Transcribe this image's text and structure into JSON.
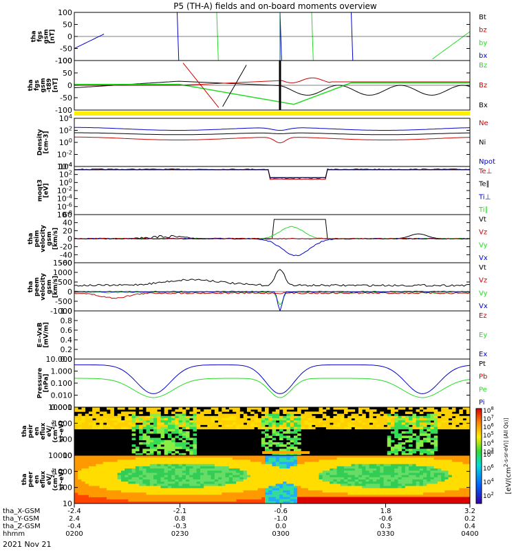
{
  "title": "P5 (TH-A) fields and on-board moments overview",
  "date_label": "2021 Nov 21",
  "colors": {
    "black": "#000000",
    "red": "#cc0000",
    "green": "#22dd22",
    "blue": "#0000cc",
    "yellow": "#ffee00",
    "white": "#ffffff"
  },
  "ephemeris": {
    "rows": [
      {
        "name": "tha_X-GSM",
        "values": [
          "-2.4",
          "-2.1",
          "-0.6",
          "1.8",
          "3.2"
        ]
      },
      {
        "name": "tha_Y-GSM",
        "values": [
          "2.4",
          "0.8",
          "-1.0",
          "-0.6",
          "0.2"
        ]
      },
      {
        "name": "tha_Z-GSM",
        "values": [
          "-0.4",
          "-0.3",
          "0.0",
          "0.3",
          "0.4"
        ]
      },
      {
        "name": "hhmm",
        "values": [
          "0200",
          "0230",
          "0300",
          "0330",
          "0400"
        ]
      }
    ]
  },
  "chart_data": [
    {
      "id": "p1",
      "type": "line",
      "ylabel": [
        "tha",
        "fgs",
        "gsm",
        "[nT]"
      ],
      "yticks": [
        "100",
        "50",
        "0",
        "-50",
        "-100"
      ],
      "ylim": [
        -100,
        100
      ],
      "legend": [
        {
          "label": "Bt",
          "color": "black"
        },
        {
          "label": "bz",
          "color": "red"
        },
        {
          "label": "by",
          "color": "green"
        },
        {
          "label": "bx",
          "color": "blue"
        }
      ]
    },
    {
      "id": "p2",
      "type": "line",
      "ylabel": [
        "tha",
        "fgs",
        "gsm",
        "-t89",
        "[nT]"
      ],
      "yticks": [
        "100",
        "50",
        "0",
        "-50",
        "-100"
      ],
      "ylim": [
        -100,
        100
      ],
      "legend": [
        {
          "label": "Bz",
          "color": "green"
        },
        {
          "label": "Bz",
          "color": "red"
        },
        {
          "label": "Bx",
          "color": "black"
        }
      ]
    },
    {
      "id": "p3",
      "type": "line",
      "log": true,
      "ylabel": [
        "Density",
        "[cm-3]"
      ],
      "yticks": [
        "10^4",
        "10^2",
        "10^0",
        "10^-2",
        "10^-4"
      ],
      "legend": [
        {
          "label": "Ne",
          "color": "red"
        },
        {
          "label": "Ni",
          "color": "black"
        },
        {
          "label": "Npot",
          "color": "blue"
        }
      ]
    },
    {
      "id": "p4",
      "type": "line",
      "log": true,
      "ylabel": [
        "moqt3",
        "[eV]"
      ],
      "yticks": [
        "10^4",
        "10^2",
        "10^0",
        "10^-2",
        "10^-4",
        "10^-6",
        "10^-8"
      ],
      "legend": [
        {
          "label": "Te⊥",
          "color": "red"
        },
        {
          "label": "Te∥",
          "color": "black"
        },
        {
          "label": "Ti⊥",
          "color": "blue"
        },
        {
          "label": "Ti∥",
          "color": "green"
        }
      ]
    },
    {
      "id": "p5",
      "type": "line",
      "ylabel": [
        "tha",
        "peim",
        "velocity",
        "gsm",
        "[km/s]"
      ],
      "yticks": [
        "60",
        "40",
        "20",
        "0",
        "-20",
        "-40",
        "-60"
      ],
      "ylim": [
        -60,
        60
      ],
      "legend": [
        {
          "label": "Vt",
          "color": "black"
        },
        {
          "label": "Vz",
          "color": "red"
        },
        {
          "label": "Vy",
          "color": "green"
        },
        {
          "label": "Vx",
          "color": "blue"
        }
      ]
    },
    {
      "id": "p6",
      "type": "line",
      "ylabel": [
        "tha",
        "peem",
        "velocity",
        "gsm",
        "[km/s]"
      ],
      "yticks": [
        "1500",
        "1000",
        "500",
        "0",
        "-500",
        "-1000"
      ],
      "ylim": [
        -1000,
        1500
      ],
      "legend": [
        {
          "label": "Vt",
          "color": "black"
        },
        {
          "label": "Vz",
          "color": "red"
        },
        {
          "label": "Vy",
          "color": "green"
        },
        {
          "label": "Vx",
          "color": "blue"
        }
      ]
    },
    {
      "id": "p7",
      "type": "line",
      "ylabel": [
        "E=-VxB",
        "[mV/m]"
      ],
      "yticks": [
        "1.0",
        "0.8",
        "0.6",
        "0.4",
        "0.2",
        "0.0"
      ],
      "ylim": [
        0,
        1
      ],
      "legend": [
        {
          "label": "Ez",
          "color": "red"
        },
        {
          "label": "Ey",
          "color": "green"
        },
        {
          "label": "Ex",
          "color": "blue"
        }
      ]
    },
    {
      "id": "p8",
      "type": "line",
      "log": true,
      "ylabel": [
        "Pressure",
        "[nPa]"
      ],
      "yticks": [
        "10.000",
        "1.000",
        "0.100",
        "0.010",
        "0.001"
      ],
      "legend": [
        {
          "label": "Pt",
          "color": "black"
        },
        {
          "label": "Pb",
          "color": "red"
        },
        {
          "label": "Pe",
          "color": "green"
        },
        {
          "label": "Pi",
          "color": "blue"
        }
      ]
    },
    {
      "id": "p9",
      "type": "heatmap",
      "ylabel": [
        "tha",
        "peir",
        "en",
        "eflux",
        "eV/",
        "(cm^2-s-",
        "sr-eV)"
      ],
      "yticks": [
        "10000",
        "1000",
        "100",
        "10"
      ]
    },
    {
      "id": "p10",
      "type": "heatmap",
      "ylabel": [
        "tha",
        "peer",
        "en",
        "eflux",
        "eV/",
        "(cm^2-s-",
        "sr-eV)"
      ],
      "yticks": [
        "10000",
        "1000",
        "100",
        "10"
      ]
    }
  ],
  "colorbar": {
    "ticks": [
      "10^8",
      "10^7",
      "10^6",
      "10^5",
      "10^4",
      "10^3"
    ],
    "ticks2": [
      "10^8",
      "10^6",
      "10^4",
      "10^2"
    ],
    "label": "[eV/(cm^2-s-sr-eV)] (All Qs)]"
  }
}
